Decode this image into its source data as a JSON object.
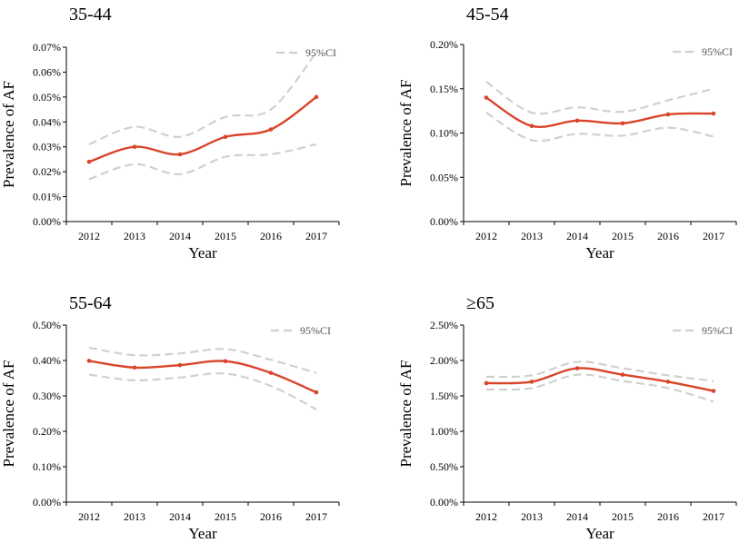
{
  "colors": {
    "line": "#d9452b",
    "ci": "#d0d0d0",
    "axis": "#000000"
  },
  "chart_data": [
    {
      "type": "line",
      "title": "35-44",
      "xlabel": "Year",
      "ylabel": "Prevalence of AF",
      "categories": [
        "2012",
        "2013",
        "2014",
        "2015",
        "2016",
        "2017"
      ],
      "ylim": [
        0,
        0.07
      ],
      "yticks": [
        0,
        0.01,
        0.02,
        0.03,
        0.04,
        0.05,
        0.06,
        0.07
      ],
      "ytick_labels": [
        "0.00%",
        "0.01%",
        "0.02%",
        "0.03%",
        "0.04%",
        "0.05%",
        "0.06%",
        "0.07%"
      ],
      "legend": "95%CI",
      "series": [
        {
          "name": "Prevalence",
          "values": [
            0.024,
            0.03,
            0.027,
            0.034,
            0.037,
            0.05
          ]
        },
        {
          "name": "95%CI upper",
          "values": [
            0.031,
            0.038,
            0.034,
            0.042,
            0.045,
            0.068
          ]
        },
        {
          "name": "95%CI lower",
          "values": [
            0.017,
            0.023,
            0.019,
            0.026,
            0.027,
            0.031
          ]
        }
      ]
    },
    {
      "type": "line",
      "title": "45-54",
      "xlabel": "Year",
      "ylabel": "Prevalence of AF",
      "categories": [
        "2012",
        "2013",
        "2014",
        "2015",
        "2016",
        "2017"
      ],
      "ylim": [
        0,
        0.2
      ],
      "yticks": [
        0,
        0.05,
        0.1,
        0.15,
        0.2
      ],
      "ytick_labels": [
        "0.00%",
        "0.05%",
        "0.10%",
        "0.15%",
        "0.20%"
      ],
      "legend": "95%CI",
      "series": [
        {
          "name": "Prevalence",
          "values": [
            0.14,
            0.108,
            0.114,
            0.111,
            0.121,
            0.122
          ]
        },
        {
          "name": "95%CI upper",
          "values": [
            0.158,
            0.123,
            0.129,
            0.124,
            0.137,
            0.15
          ]
        },
        {
          "name": "95%CI lower",
          "values": [
            0.123,
            0.092,
            0.099,
            0.097,
            0.106,
            0.096
          ]
        }
      ]
    },
    {
      "type": "line",
      "title": "55-64",
      "xlabel": "Year",
      "ylabel": "Prevalence of AF",
      "categories": [
        "2012",
        "2013",
        "2014",
        "2015",
        "2016",
        "2017"
      ],
      "ylim": [
        0,
        0.5
      ],
      "yticks": [
        0,
        0.1,
        0.2,
        0.3,
        0.4,
        0.5
      ],
      "ytick_labels": [
        "0.00%",
        "0.10%",
        "0.20%",
        "0.30%",
        "0.40%",
        "0.50%"
      ],
      "legend": "95%CI",
      "series": [
        {
          "name": "Prevalence",
          "values": [
            0.399,
            0.38,
            0.387,
            0.398,
            0.365,
            0.31
          ]
        },
        {
          "name": "95%CI upper",
          "values": [
            0.436,
            0.415,
            0.42,
            0.432,
            0.402,
            0.365
          ]
        },
        {
          "name": "95%CI lower",
          "values": [
            0.36,
            0.344,
            0.352,
            0.363,
            0.328,
            0.262
          ]
        }
      ]
    },
    {
      "type": "line",
      "title": "≥65",
      "xlabel": "Year",
      "ylabel": "Prevalence of AF",
      "categories": [
        "2012",
        "2013",
        "2014",
        "2015",
        "2016",
        "2017"
      ],
      "ylim": [
        0,
        2.5
      ],
      "yticks": [
        0,
        0.5,
        1.0,
        1.5,
        2.0,
        2.5
      ],
      "ytick_labels": [
        "0.00%",
        "0.50%",
        "1.00%",
        "1.50%",
        "2.00%",
        "2.50%"
      ],
      "legend": "95%CI",
      "series": [
        {
          "name": "Prevalence",
          "values": [
            1.68,
            1.7,
            1.89,
            1.8,
            1.7,
            1.57
          ]
        },
        {
          "name": "95%CI upper",
          "values": [
            1.77,
            1.79,
            1.98,
            1.89,
            1.79,
            1.71
          ]
        },
        {
          "name": "95%CI lower",
          "values": [
            1.59,
            1.61,
            1.8,
            1.71,
            1.61,
            1.42
          ]
        }
      ]
    }
  ]
}
